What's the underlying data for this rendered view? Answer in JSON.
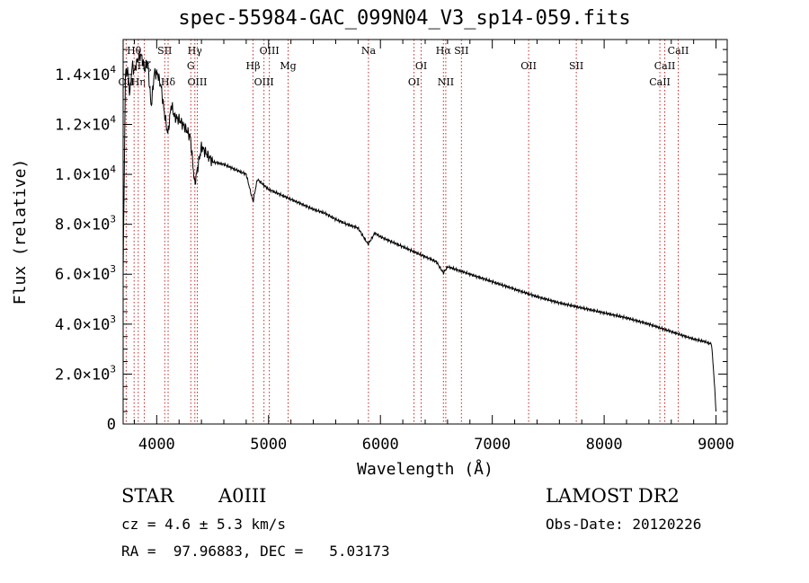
{
  "title": "spec-55984-GAC_099N04_V3_sp14-059.fits",
  "info": {
    "class_label": "STAR",
    "subclass": "A0III",
    "survey": "LAMOST DR2",
    "cz": "cz = 4.6 ± 5.3 km/s",
    "obs_date": "Obs-Date: 20120226",
    "coords": "RA =  97.96883, DEC =   5.03173"
  },
  "chart_data": {
    "type": "line",
    "title": "spec-55984-GAC_099N04_V3_sp14-059.fits",
    "xlabel": "Wavelength (Å)",
    "ylabel": "Flux (relative)",
    "xlim": [
      3700,
      9100
    ],
    "ylim": [
      0,
      15400
    ],
    "grid": false,
    "line_color": "#000000",
    "marker_color": "#cc2222",
    "x_ticks": [
      {
        "value": 4000,
        "label": "4000"
      },
      {
        "value": 5000,
        "label": "5000"
      },
      {
        "value": 6000,
        "label": "6000"
      },
      {
        "value": 7000,
        "label": "7000"
      },
      {
        "value": 8000,
        "label": "8000"
      },
      {
        "value": 9000,
        "label": "9000"
      }
    ],
    "y_ticks": [
      {
        "value": 0,
        "mant": "0",
        "exp": ""
      },
      {
        "value": 2000,
        "mant": "2.0×10",
        "exp": "3"
      },
      {
        "value": 4000,
        "mant": "4.0×10",
        "exp": "3"
      },
      {
        "value": 6000,
        "mant": "6.0×10",
        "exp": "3"
      },
      {
        "value": 8000,
        "mant": "8.0×10",
        "exp": "3"
      },
      {
        "value": 10000,
        "mant": "1.0×10",
        "exp": "4"
      },
      {
        "value": 12000,
        "mant": "1.2×10",
        "exp": "4"
      },
      {
        "value": 14000,
        "mant": "1.4×10",
        "exp": "4"
      }
    ],
    "series": [
      {
        "x": [
          3700,
          3720,
          3740,
          3760,
          3780,
          3800,
          3830,
          3860,
          3890,
          3920,
          3950,
          3980,
          4010,
          4040,
          4070,
          4100,
          4130,
          4160,
          4200,
          4250,
          4300,
          4340,
          4400,
          4450,
          4500,
          4600,
          4700,
          4800,
          4861,
          4900,
          5000,
          5100,
          5200,
          5300,
          5400,
          5500,
          5600,
          5700,
          5800,
          5890,
          5950,
          6000,
          6100,
          6200,
          6300,
          6400,
          6500,
          6563,
          6600,
          6700,
          6800,
          6900,
          7000,
          7200,
          7400,
          7600,
          7800,
          8000,
          8200,
          8400,
          8500,
          8600,
          8700,
          8800,
          8900,
          8960,
          8980,
          9000
        ],
        "y": [
          6000,
          14000,
          14200,
          13200,
          14400,
          14100,
          14600,
          14800,
          14200,
          14500,
          12700,
          14100,
          14000,
          13500,
          12400,
          11600,
          12800,
          12300,
          12200,
          11900,
          11500,
          9600,
          11100,
          10800,
          10500,
          10400,
          10200,
          10000,
          8900,
          9800,
          9400,
          9200,
          9000,
          8800,
          8600,
          8450,
          8200,
          8000,
          7850,
          7200,
          7650,
          7500,
          7300,
          7100,
          6900,
          6700,
          6500,
          6050,
          6300,
          6150,
          6000,
          5850,
          5700,
          5400,
          5100,
          4850,
          4650,
          4450,
          4250,
          4000,
          3850,
          3700,
          3550,
          3400,
          3300,
          3200,
          2000,
          500
        ]
      }
    ],
    "lines": [
      {
        "name": "Hθ",
        "wl": 3798,
        "row": 1
      },
      {
        "name": "OⅠⅠ",
        "wl": 3727,
        "row": 4
      },
      {
        "name": "Hη",
        "wl": 3835,
        "row": 4
      },
      {
        "name": "Hζ",
        "wl": 3889,
        "row": 2
      },
      {
        "name": "SII",
        "wl": 4072,
        "row": 1
      },
      {
        "name": "Hδ",
        "wl": 4102,
        "row": 4
      },
      {
        "name": "Hγ",
        "wl": 4341,
        "row": 1
      },
      {
        "name": "G",
        "wl": 4305,
        "row": 2
      },
      {
        "name": "OIII",
        "wl": 4363,
        "row": 3
      },
      {
        "name": "Hβ",
        "wl": 4861,
        "row": 2
      },
      {
        "name": "OIII",
        "wl": 5007,
        "row": 1
      },
      {
        "name": "OIII",
        "wl": 4959,
        "row": 3
      },
      {
        "name": "Mg",
        "wl": 5175,
        "row": 2
      },
      {
        "name": "Na",
        "wl": 5893,
        "row": 1
      },
      {
        "name": "OI",
        "wl": 6364,
        "row": 2
      },
      {
        "name": "OI",
        "wl": 6300,
        "row": 3
      },
      {
        "name": "Hα",
        "wl": 6563,
        "row": 1
      },
      {
        "name": "NII",
        "wl": 6584,
        "row": 3
      },
      {
        "name": "SII",
        "wl": 6724,
        "row": 1
      },
      {
        "name": "OII",
        "wl": 7325,
        "row": 2
      },
      {
        "name": "SII",
        "wl": 7751,
        "row": 2
      },
      {
        "name": "CaII",
        "wl": 8662,
        "row": 1
      },
      {
        "name": "CaII",
        "wl": 8542,
        "row": 2
      },
      {
        "name": "CaII",
        "wl": 8498,
        "row": 3
      }
    ]
  }
}
